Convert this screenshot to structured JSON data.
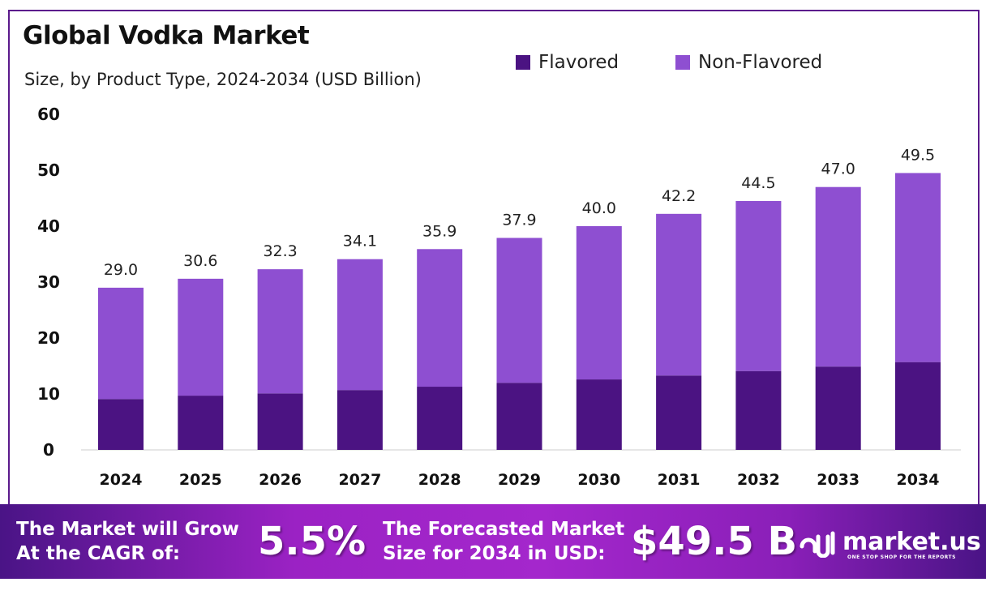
{
  "chart_data": {
    "type": "bar",
    "stacked": true,
    "title": "Global Vodka Market",
    "subtitle": "Size, by Product Type, 2024-2034 (USD Billion)",
    "categories": [
      "2024",
      "2025",
      "2026",
      "2027",
      "2028",
      "2029",
      "2030",
      "2031",
      "2032",
      "2033",
      "2034"
    ],
    "series": [
      {
        "name": "Flavored",
        "color": "#4b1382",
        "values": [
          9.1,
          9.7,
          10.1,
          10.7,
          11.3,
          12.0,
          12.6,
          13.3,
          14.1,
          14.9,
          15.7
        ]
      },
      {
        "name": "Non-Flavored",
        "color": "#8e4fd1",
        "values": [
          19.9,
          20.9,
          22.2,
          23.4,
          24.6,
          25.9,
          27.4,
          28.9,
          30.4,
          32.1,
          33.8
        ]
      }
    ],
    "totals": [
      "29.0",
      "30.6",
      "32.3",
      "34.1",
      "35.9",
      "37.9",
      "40.0",
      "42.2",
      "44.5",
      "47.0",
      "49.5"
    ],
    "ylim": [
      0,
      60
    ],
    "yticks": [
      0,
      10,
      20,
      30,
      40,
      50,
      60
    ],
    "grid": false,
    "legend": "top-right"
  },
  "footer": {
    "cagr_label_1": "The Market will Grow",
    "cagr_label_2": "At the CAGR of:",
    "cagr_value": "5.5%",
    "forecast_label_1": "The Forecasted Market",
    "forecast_label_2": "Size for 2034 in USD:",
    "forecast_value": "$49.5 B",
    "logo_name": "market.us",
    "logo_tagline": "ONE STOP SHOP FOR THE REPORTS"
  }
}
